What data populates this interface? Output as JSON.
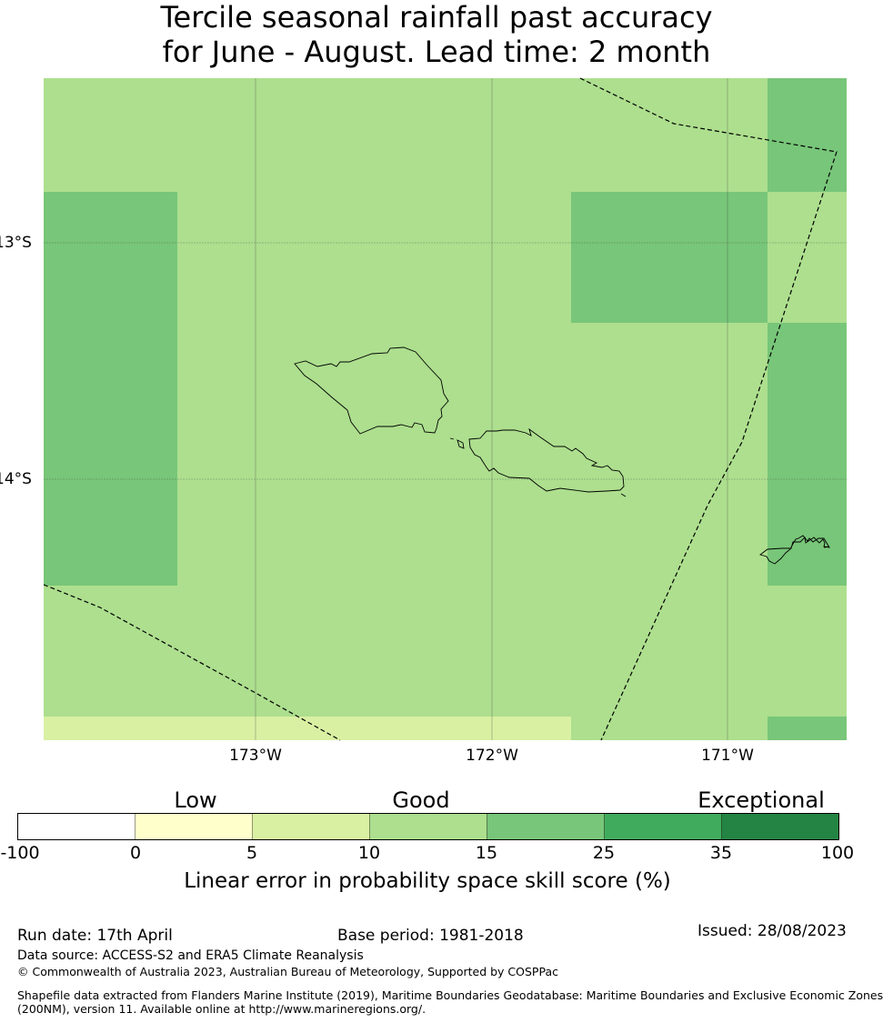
{
  "title": {
    "line1": "Tercile seasonal rainfall past accuracy",
    "line2": "for June - August. Lead time: 2 month"
  },
  "map": {
    "latitude_labels": [
      "13°S",
      "14°S"
    ],
    "longitude_labels": [
      "173°W",
      "172°W",
      "171°W"
    ],
    "colors": {
      "skill_10_15": "#addf8e",
      "skill_15_25": "#78c679",
      "skill_5_10": "#d9f0a3"
    }
  },
  "legend": {
    "categories": [
      "Low",
      "Good",
      "Exceptional"
    ],
    "ticks": [
      "-100",
      "0",
      "5",
      "10",
      "15",
      "25",
      "35",
      "100"
    ],
    "colors": [
      "#ffffff",
      "#ffffcc",
      "#d9f0a3",
      "#addf8e",
      "#78c679",
      "#41ab5d",
      "#238443"
    ],
    "title": "Linear error in probability space skill score (%)"
  },
  "footer": {
    "run_date": "Run date: 17th April",
    "base_period": "Base period: 1981-2018",
    "issued": "Issued: 28/08/2023",
    "data_source": "Data source: ACCESS-S2 and ERA5 Climate Reanalysis",
    "copyright": "© Commonwealth of Australia 2023, Australian Bureau of Meteorology, Supported by COSPPac",
    "shapefile_line1": "Shapefile data extracted from Flanders Marine Institute (2019), Maritime Boundaries Geodatabase: Maritime Boundaries and Exclusive Economic Zones",
    "shapefile_line2": "(200NM), version 11. Available online at http://www.marineregions.org/."
  }
}
